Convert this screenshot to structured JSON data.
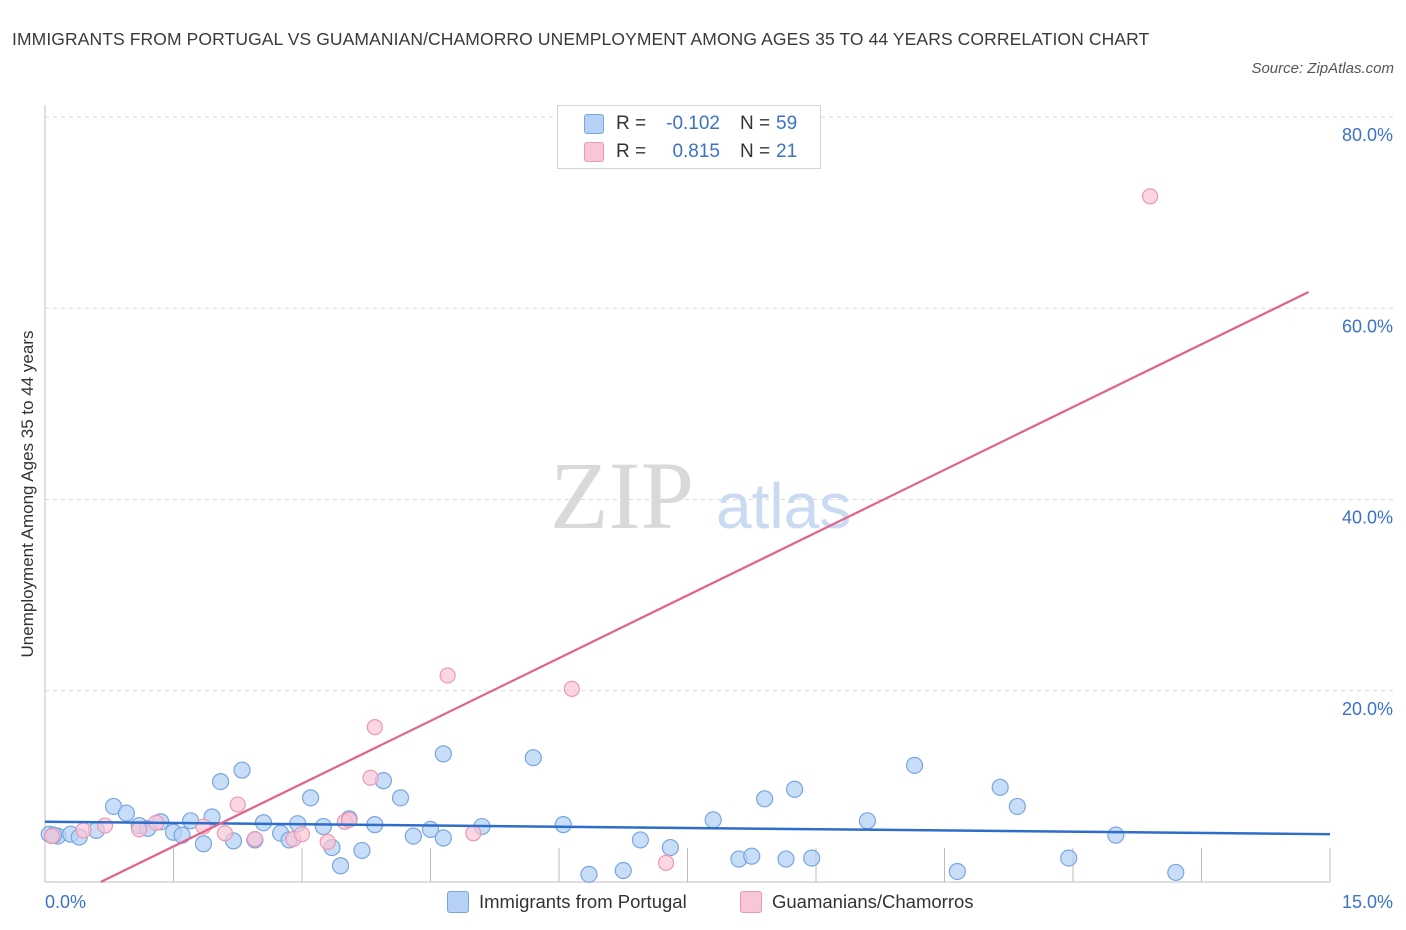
{
  "title": "IMMIGRANTS FROM PORTUGAL VS GUAMANIAN/CHAMORRO UNEMPLOYMENT AMONG AGES 35 TO 44 YEARS CORRELATION CHART",
  "source": "Source: ZipAtlas.com",
  "watermark": {
    "zip": "ZIP",
    "atlas": "atlas"
  },
  "colors": {
    "blue_fill": "#b6d1f5",
    "blue_stroke": "#7aa6e0",
    "blue_line": "#2e6ec9",
    "pink_fill": "#f8c6d5",
    "pink_stroke": "#ec98b2",
    "pink_line": "#e2628b",
    "tick_label": "#3b72c8",
    "grid": "#dadada"
  },
  "legend": {
    "rows": [
      {
        "swatch": "blue",
        "r_label": "R =",
        "r_value": "-0.102",
        "n_label": "N =",
        "n_value": "59"
      },
      {
        "swatch": "pink",
        "r_label": "R =",
        "r_value": "0.815",
        "n_label": "N =",
        "n_value": "21"
      }
    ]
  },
  "bottom_legend": [
    {
      "swatch": "blue",
      "label": "Immigrants from Portugal"
    },
    {
      "swatch": "pink",
      "label": "Guamanians/Chamorros"
    }
  ],
  "chart_data": {
    "type": "scatter",
    "title": "IMMIGRANTS FROM PORTUGAL VS GUAMANIAN/CHAMORRO UNEMPLOYMENT AMONG AGES 35 TO 44 YEARS CORRELATION CHART",
    "xlabel": "",
    "ylabel": "Unemployment Among Ages 35 to 44 years",
    "xlim": [
      0,
      15
    ],
    "ylim": [
      0,
      80
    ],
    "x_tick_labels": [
      {
        "value": 0,
        "label": "0.0%"
      },
      {
        "value": 15,
        "label": "15.0%"
      }
    ],
    "y_tick_labels": [
      {
        "value": 20,
        "label": "20.0%"
      },
      {
        "value": 40,
        "label": "40.0%"
      },
      {
        "value": 60,
        "label": "60.0%"
      },
      {
        "value": 80,
        "label": "80.0%"
      }
    ],
    "y_gridlines": [
      20,
      40,
      60,
      80
    ],
    "x_minor_ticks": [
      1.5,
      3,
      4.5,
      6,
      7.5,
      9,
      10.5,
      12,
      13.5,
      15
    ],
    "series": [
      {
        "name": "Immigrants from Portugal",
        "color": "blue",
        "trend": {
          "x": [
            0,
            15
          ],
          "y": [
            6.3,
            5.0
          ]
        },
        "points": [
          [
            0.05,
            5.0
          ],
          [
            0.15,
            4.8
          ],
          [
            0.3,
            5.0
          ],
          [
            0.4,
            4.7
          ],
          [
            0.6,
            5.4
          ],
          [
            0.8,
            7.9
          ],
          [
            0.95,
            7.2
          ],
          [
            1.1,
            5.9
          ],
          [
            1.2,
            5.6
          ],
          [
            1.35,
            6.3
          ],
          [
            1.5,
            5.2
          ],
          [
            1.6,
            4.9
          ],
          [
            1.7,
            6.4
          ],
          [
            1.85,
            4.0
          ],
          [
            1.95,
            6.8
          ],
          [
            2.05,
            10.5
          ],
          [
            2.2,
            4.3
          ],
          [
            2.3,
            11.7
          ],
          [
            2.45,
            4.4
          ],
          [
            2.55,
            6.2
          ],
          [
            2.75,
            5.1
          ],
          [
            2.85,
            4.4
          ],
          [
            2.95,
            6.1
          ],
          [
            3.1,
            8.8
          ],
          [
            3.25,
            5.8
          ],
          [
            3.35,
            3.6
          ],
          [
            3.45,
            1.7
          ],
          [
            3.55,
            6.6
          ],
          [
            3.7,
            3.3
          ],
          [
            3.85,
            6.0
          ],
          [
            3.95,
            10.6
          ],
          [
            4.15,
            8.8
          ],
          [
            4.3,
            4.8
          ],
          [
            4.5,
            5.5
          ],
          [
            4.65,
            4.6
          ],
          [
            4.65,
            13.4
          ],
          [
            5.1,
            5.8
          ],
          [
            5.7,
            13.0
          ],
          [
            6.05,
            6.0
          ],
          [
            6.35,
            0.8
          ],
          [
            6.75,
            1.2
          ],
          [
            6.95,
            4.4
          ],
          [
            7.3,
            3.6
          ],
          [
            7.8,
            6.5
          ],
          [
            8.1,
            2.4
          ],
          [
            8.25,
            2.7
          ],
          [
            8.4,
            8.7
          ],
          [
            8.65,
            2.4
          ],
          [
            8.75,
            9.7
          ],
          [
            8.95,
            2.5
          ],
          [
            9.6,
            6.4
          ],
          [
            10.15,
            12.2
          ],
          [
            10.65,
            1.1
          ],
          [
            11.15,
            9.9
          ],
          [
            11.35,
            7.9
          ],
          [
            11.95,
            2.5
          ],
          [
            12.5,
            4.9
          ],
          [
            13.2,
            1.0
          ],
          [
            0.1,
            4.9
          ]
        ]
      },
      {
        "name": "Guamanians/Chamorros",
        "color": "pink",
        "trend": {
          "x": [
            0.65,
            14.75
          ],
          "y": [
            0.0,
            61.7
          ]
        },
        "points": [
          [
            0.08,
            4.8
          ],
          [
            0.45,
            5.4
          ],
          [
            0.7,
            5.9
          ],
          [
            1.1,
            5.5
          ],
          [
            1.3,
            6.2
          ],
          [
            1.85,
            5.8
          ],
          [
            2.1,
            5.1
          ],
          [
            2.25,
            8.1
          ],
          [
            2.45,
            4.5
          ],
          [
            2.9,
            4.5
          ],
          [
            3.0,
            5.0
          ],
          [
            3.3,
            4.2
          ],
          [
            3.5,
            6.3
          ],
          [
            3.8,
            10.9
          ],
          [
            3.85,
            16.2
          ],
          [
            4.7,
            21.6
          ],
          [
            5.0,
            5.1
          ],
          [
            6.15,
            20.2
          ],
          [
            7.25,
            2.0
          ],
          [
            12.9,
            71.7
          ],
          [
            3.55,
            6.5
          ]
        ]
      }
    ]
  }
}
